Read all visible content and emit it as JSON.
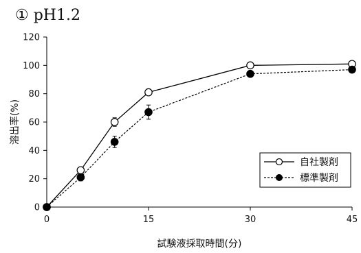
{
  "chart_data": {
    "type": "line",
    "title": "① pH1.2",
    "xlabel": "試験液採取時間(分)",
    "ylabel": "溶出率(%)",
    "xlim": [
      0,
      45
    ],
    "ylim": [
      0,
      120
    ],
    "xticks": [
      0,
      15,
      30,
      45
    ],
    "yticks": [
      0,
      20,
      40,
      60,
      80,
      100,
      120
    ],
    "grid": false,
    "legend_position": "right",
    "series": [
      {
        "name": "自社製剤",
        "marker": "open-circle",
        "line_style": "solid",
        "color": "#000000",
        "x": [
          0,
          5,
          10,
          15,
          30,
          45
        ],
        "y": [
          0,
          26,
          60,
          81,
          100,
          101
        ],
        "error": [
          0,
          1.5,
          3,
          1.5,
          0.5,
          1
        ]
      },
      {
        "name": "標準製剤",
        "marker": "filled-circle",
        "line_style": "dashed",
        "color": "#000000",
        "x": [
          0,
          5,
          10,
          15,
          30,
          45
        ],
        "y": [
          0,
          21,
          46,
          67,
          94,
          97
        ],
        "error": [
          0,
          2.5,
          4,
          5,
          1,
          1
        ]
      }
    ]
  }
}
